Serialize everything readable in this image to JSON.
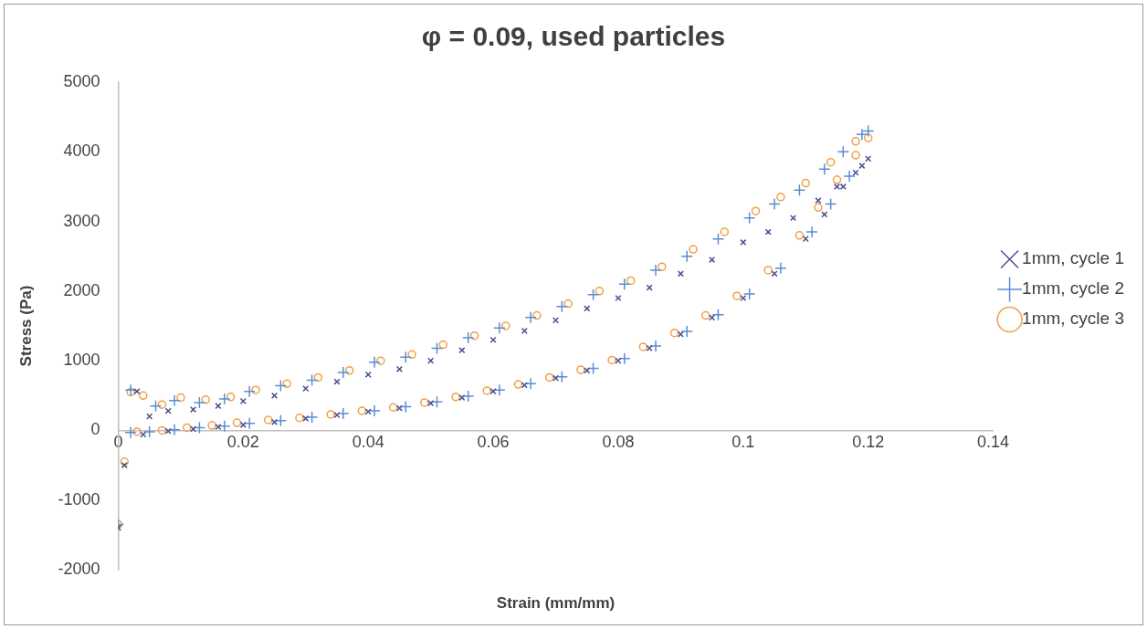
{
  "chart_data": {
    "type": "scatter",
    "title": "φ = 0.09, used particles",
    "xlabel": "Strain (mm/mm)",
    "ylabel": "Stress (Pa)",
    "xlim": [
      0,
      0.14
    ],
    "xticks": [
      0,
      0.02,
      0.04,
      0.06,
      0.08,
      0.1,
      0.12,
      0.14
    ],
    "ylim": [
      -2000,
      5000
    ],
    "yticks": [
      -2000,
      -1000,
      0,
      1000,
      2000,
      3000,
      4000,
      5000
    ],
    "grid": false,
    "legend": "right",
    "series": [
      {
        "name": "1mm, cycle 1",
        "color": "#4a4f94",
        "marker": "cross",
        "x": [
          0,
          0.001,
          0.004,
          0.008,
          0.012,
          0.016,
          0.02,
          0.025,
          0.03,
          0.035,
          0.04,
          0.045,
          0.05,
          0.055,
          0.06,
          0.065,
          0.07,
          0.075,
          0.08,
          0.085,
          0.09,
          0.095,
          0.1,
          0.105,
          0.11,
          0.113,
          0.116,
          0.119,
          0.12,
          0.118,
          0.115,
          0.112,
          0.108,
          0.104,
          0.1,
          0.095,
          0.09,
          0.085,
          0.08,
          0.075,
          0.07,
          0.065,
          0.06,
          0.055,
          0.05,
          0.045,
          0.04,
          0.035,
          0.03,
          0.025,
          0.02,
          0.016,
          0.012,
          0.008,
          0.005,
          0.003
        ],
        "values": [
          -1400,
          -500,
          -60,
          -10,
          20,
          50,
          80,
          120,
          170,
          220,
          270,
          320,
          390,
          470,
          560,
          650,
          750,
          860,
          1000,
          1180,
          1380,
          1620,
          1900,
          2250,
          2750,
          3100,
          3500,
          3800,
          3900,
          3700,
          3500,
          3300,
          3050,
          2850,
          2700,
          2450,
          2250,
          2050,
          1900,
          1750,
          1580,
          1430,
          1300,
          1150,
          1000,
          880,
          800,
          700,
          600,
          500,
          420,
          350,
          300,
          280,
          200,
          560
        ]
      },
      {
        "name": "1mm, cycle 2",
        "color": "#5b8dd4",
        "marker": "plus",
        "x": [
          0,
          0.002,
          0.005,
          0.009,
          0.013,
          0.017,
          0.021,
          0.026,
          0.031,
          0.036,
          0.041,
          0.046,
          0.051,
          0.056,
          0.061,
          0.066,
          0.071,
          0.076,
          0.081,
          0.086,
          0.091,
          0.096,
          0.101,
          0.106,
          0.111,
          0.114,
          0.117,
          0.12,
          0.119,
          0.116,
          0.113,
          0.109,
          0.105,
          0.101,
          0.096,
          0.091,
          0.086,
          0.081,
          0.076,
          0.071,
          0.066,
          0.061,
          0.056,
          0.051,
          0.046,
          0.041,
          0.036,
          0.031,
          0.026,
          0.021,
          0.017,
          0.013,
          0.009,
          0.006,
          0.002
        ],
        "values": [
          -1350,
          -30,
          -20,
          10,
          40,
          60,
          100,
          140,
          190,
          240,
          280,
          340,
          410,
          490,
          580,
          670,
          770,
          890,
          1030,
          1210,
          1420,
          1660,
          1960,
          2330,
          2850,
          3250,
          3650,
          4300,
          4250,
          4000,
          3750,
          3450,
          3250,
          3050,
          2750,
          2500,
          2300,
          2100,
          1950,
          1780,
          1620,
          1470,
          1330,
          1180,
          1050,
          980,
          830,
          720,
          640,
          560,
          450,
          400,
          430,
          350,
          580
        ]
      },
      {
        "name": "1mm, cycle 3",
        "color": "#f0a043",
        "marker": "circle",
        "x": [
          0,
          0.001,
          0.003,
          0.007,
          0.011,
          0.015,
          0.019,
          0.024,
          0.029,
          0.034,
          0.039,
          0.044,
          0.049,
          0.054,
          0.059,
          0.064,
          0.069,
          0.074,
          0.079,
          0.084,
          0.089,
          0.094,
          0.099,
          0.104,
          0.109,
          0.112,
          0.115,
          0.118,
          0.12,
          0.118,
          0.114,
          0.11,
          0.106,
          0.102,
          0.097,
          0.092,
          0.087,
          0.082,
          0.077,
          0.072,
          0.067,
          0.062,
          0.057,
          0.052,
          0.047,
          0.042,
          0.037,
          0.032,
          0.027,
          0.022,
          0.018,
          0.014,
          0.01,
          0.007,
          0.004,
          0.002
        ],
        "values": [
          -1350,
          -450,
          -20,
          0,
          40,
          70,
          110,
          150,
          180,
          230,
          280,
          330,
          400,
          480,
          570,
          660,
          760,
          870,
          1010,
          1200,
          1400,
          1650,
          1930,
          2300,
          2800,
          3200,
          3600,
          3950,
          4200,
          4150,
          3850,
          3550,
          3350,
          3150,
          2850,
          2600,
          2350,
          2150,
          2000,
          1820,
          1650,
          1500,
          1360,
          1230,
          1090,
          1000,
          860,
          760,
          670,
          580,
          480,
          440,
          470,
          370,
          500,
          550
        ]
      }
    ]
  }
}
